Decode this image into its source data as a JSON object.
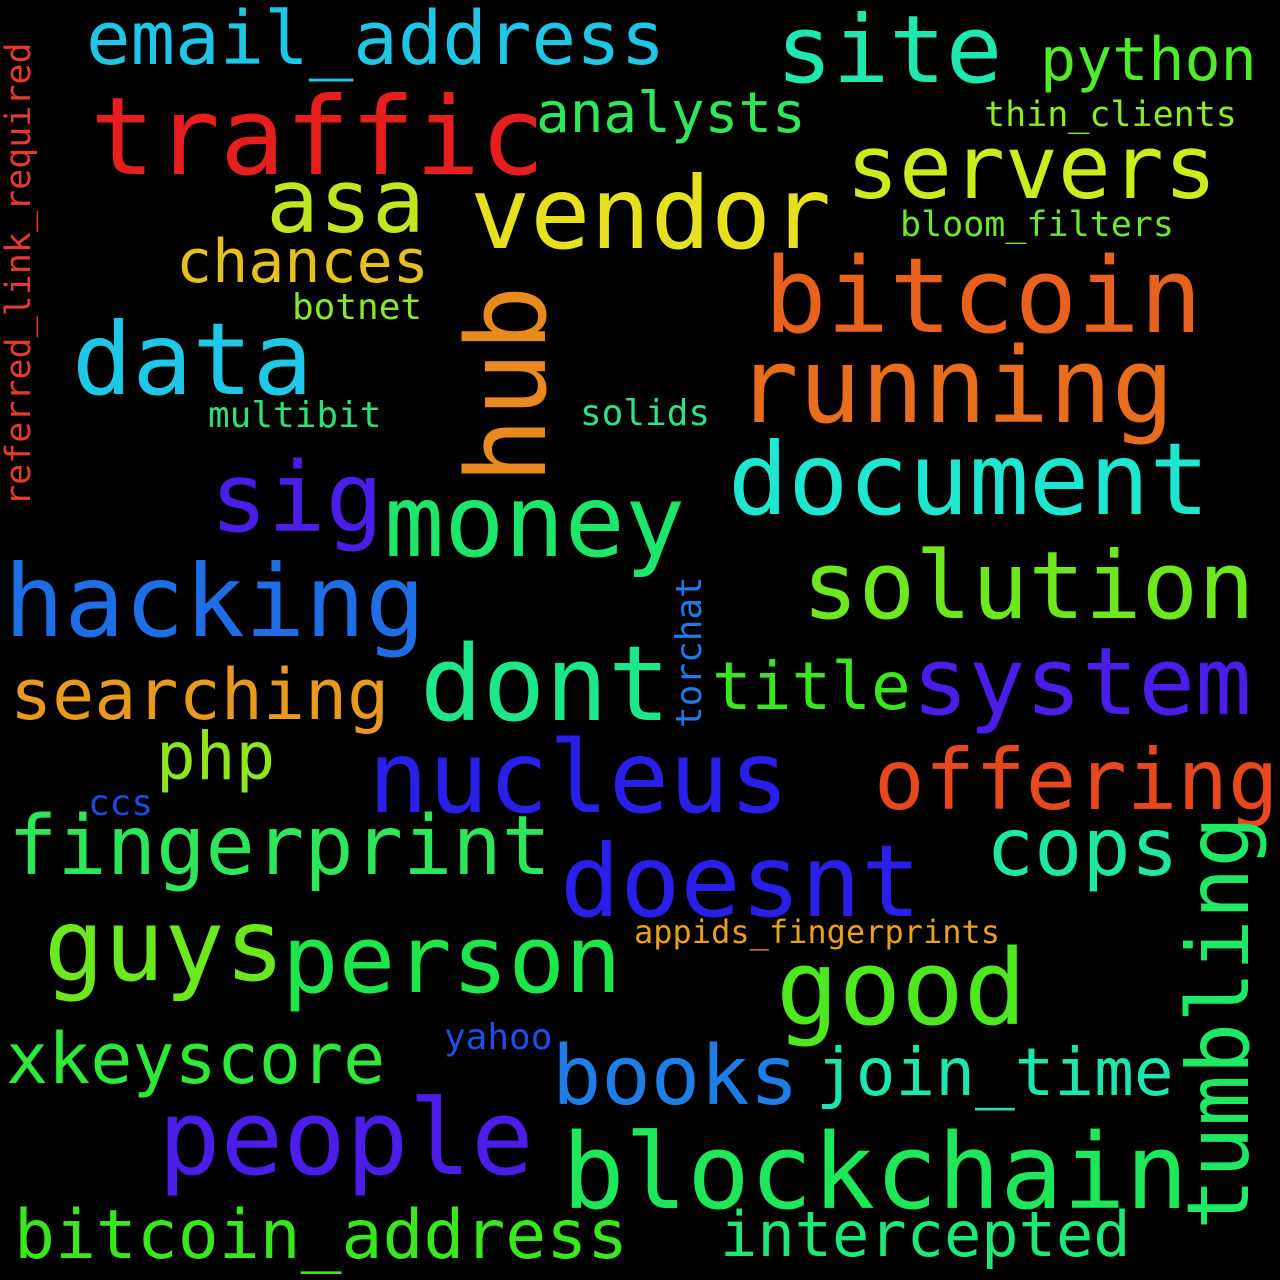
{
  "words": [
    {
      "text": "email_address",
      "color": "#1fc6e6"
    },
    {
      "text": "site",
      "color": "#1ee8b0"
    },
    {
      "text": "python",
      "color": "#4fec2a"
    },
    {
      "text": "traffic",
      "color": "#e61e1e"
    },
    {
      "text": "analysts",
      "color": "#2ee85a"
    },
    {
      "text": "thin_clients",
      "color": "#8aee22"
    },
    {
      "text": "servers",
      "color": "#c9ee1e"
    },
    {
      "text": "asa",
      "color": "#bfe61e"
    },
    {
      "text": "vendor",
      "color": "#e6e01e"
    },
    {
      "text": "bloom_filters",
      "color": "#6ee82a"
    },
    {
      "text": "chances",
      "color": "#e6c01e"
    },
    {
      "text": "bitcoin",
      "color": "#e8621e"
    },
    {
      "text": "botnet",
      "color": "#8ae62a"
    },
    {
      "text": "data",
      "color": "#1ec8e6"
    },
    {
      "text": "hub",
      "color": "#e88a1e"
    },
    {
      "text": "running",
      "color": "#e86e1e"
    },
    {
      "text": "referred_link_required",
      "color": "#e63a2a"
    },
    {
      "text": "multibit",
      "color": "#2ee07a"
    },
    {
      "text": "solids",
      "color": "#2ee08a"
    },
    {
      "text": "document",
      "color": "#1ee6d0"
    },
    {
      "text": "sig",
      "color": "#4a1ee8"
    },
    {
      "text": "money",
      "color": "#1ee66a"
    },
    {
      "text": "solution",
      "color": "#6ee81e"
    },
    {
      "text": "hacking",
      "color": "#1e6ee6"
    },
    {
      "text": "torchat",
      "color": "#1e7ae6"
    },
    {
      "text": "dont",
      "color": "#1ee68a"
    },
    {
      "text": "system",
      "color": "#4a1ee8"
    },
    {
      "text": "searching",
      "color": "#e89a1e"
    },
    {
      "text": "title",
      "color": "#3ae61e"
    },
    {
      "text": "php",
      "color": "#8ee61e"
    },
    {
      "text": "nucleus",
      "color": "#2a1ee8"
    },
    {
      "text": "offering",
      "color": "#e8481e"
    },
    {
      "text": "ccs",
      "color": "#1e48e6"
    },
    {
      "text": "fingerprint",
      "color": "#2ee65a"
    },
    {
      "text": "cops",
      "color": "#1ee8a0"
    },
    {
      "text": "doesnt",
      "color": "#2a1ee8"
    },
    {
      "text": "guys",
      "color": "#6ee81e"
    },
    {
      "text": "person",
      "color": "#1ee64a"
    },
    {
      "text": "appids_fingerprints",
      "color": "#e8a01e"
    },
    {
      "text": "good",
      "color": "#4ee81e"
    },
    {
      "text": "tumbling",
      "color": "#1ee864"
    },
    {
      "text": "xkeyscore",
      "color": "#2ee83a"
    },
    {
      "text": "yahoo",
      "color": "#1e4ee6"
    },
    {
      "text": "books",
      "color": "#1e7ee6"
    },
    {
      "text": "join_time",
      "color": "#1ee6b0"
    },
    {
      "text": "people",
      "color": "#4a1ee8"
    },
    {
      "text": "blockchain",
      "color": "#1ee85a"
    },
    {
      "text": "bitcoin_address",
      "color": "#3ae61e"
    },
    {
      "text": "intercepted",
      "color": "#1ee878"
    }
  ]
}
